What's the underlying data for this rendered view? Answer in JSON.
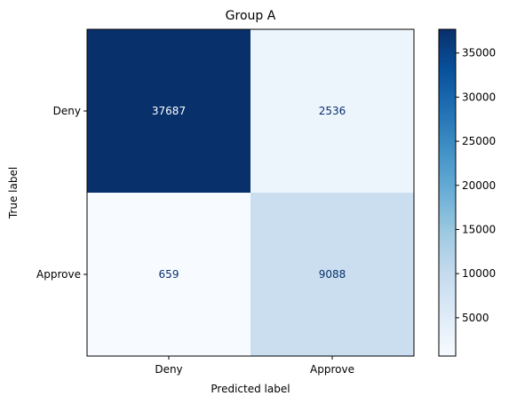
{
  "chart_data": {
    "type": "heatmap",
    "title": "Group A",
    "xlabel": "Predicted label",
    "ylabel": "True label",
    "x_categories": [
      "Deny",
      "Approve"
    ],
    "y_categories": [
      "Deny",
      "Approve"
    ],
    "values": [
      [
        37687,
        2536
      ],
      [
        659,
        9088
      ]
    ],
    "colormap": "Blues",
    "colorbar": {
      "range": [
        659,
        37687
      ],
      "ticks": [
        "5000",
        "10000",
        "15000",
        "20000",
        "25000",
        "30000",
        "35000"
      ]
    },
    "grid": false
  }
}
